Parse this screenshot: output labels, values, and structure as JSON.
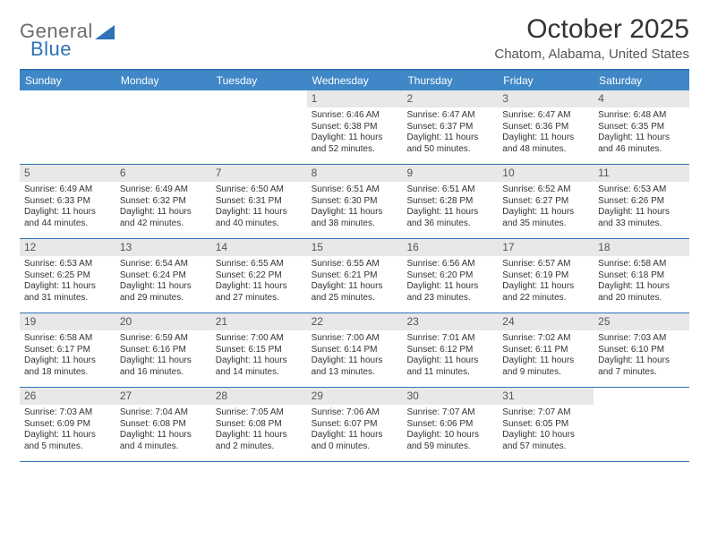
{
  "logo": {
    "text_general": "General",
    "text_blue": "Blue",
    "shape_color": "#2f72b8",
    "gray_color": "#6c6c6c"
  },
  "title": "October 2025",
  "location": "Chatom, Alabama, United States",
  "header_bg": "#3f87c6",
  "accent": "#2f72b8",
  "daynum_bg": "#e8e8e8",
  "text_color": "#333333",
  "day_headers": [
    "Sunday",
    "Monday",
    "Tuesday",
    "Wednesday",
    "Thursday",
    "Friday",
    "Saturday"
  ],
  "weeks": [
    [
      null,
      null,
      null,
      {
        "n": "1",
        "sr": "Sunrise: 6:46 AM",
        "ss": "Sunset: 6:38 PM",
        "dl": "Daylight: 11 hours and 52 minutes."
      },
      {
        "n": "2",
        "sr": "Sunrise: 6:47 AM",
        "ss": "Sunset: 6:37 PM",
        "dl": "Daylight: 11 hours and 50 minutes."
      },
      {
        "n": "3",
        "sr": "Sunrise: 6:47 AM",
        "ss": "Sunset: 6:36 PM",
        "dl": "Daylight: 11 hours and 48 minutes."
      },
      {
        "n": "4",
        "sr": "Sunrise: 6:48 AM",
        "ss": "Sunset: 6:35 PM",
        "dl": "Daylight: 11 hours and 46 minutes."
      }
    ],
    [
      {
        "n": "5",
        "sr": "Sunrise: 6:49 AM",
        "ss": "Sunset: 6:33 PM",
        "dl": "Daylight: 11 hours and 44 minutes."
      },
      {
        "n": "6",
        "sr": "Sunrise: 6:49 AM",
        "ss": "Sunset: 6:32 PM",
        "dl": "Daylight: 11 hours and 42 minutes."
      },
      {
        "n": "7",
        "sr": "Sunrise: 6:50 AM",
        "ss": "Sunset: 6:31 PM",
        "dl": "Daylight: 11 hours and 40 minutes."
      },
      {
        "n": "8",
        "sr": "Sunrise: 6:51 AM",
        "ss": "Sunset: 6:30 PM",
        "dl": "Daylight: 11 hours and 38 minutes."
      },
      {
        "n": "9",
        "sr": "Sunrise: 6:51 AM",
        "ss": "Sunset: 6:28 PM",
        "dl": "Daylight: 11 hours and 36 minutes."
      },
      {
        "n": "10",
        "sr": "Sunrise: 6:52 AM",
        "ss": "Sunset: 6:27 PM",
        "dl": "Daylight: 11 hours and 35 minutes."
      },
      {
        "n": "11",
        "sr": "Sunrise: 6:53 AM",
        "ss": "Sunset: 6:26 PM",
        "dl": "Daylight: 11 hours and 33 minutes."
      }
    ],
    [
      {
        "n": "12",
        "sr": "Sunrise: 6:53 AM",
        "ss": "Sunset: 6:25 PM",
        "dl": "Daylight: 11 hours and 31 minutes."
      },
      {
        "n": "13",
        "sr": "Sunrise: 6:54 AM",
        "ss": "Sunset: 6:24 PM",
        "dl": "Daylight: 11 hours and 29 minutes."
      },
      {
        "n": "14",
        "sr": "Sunrise: 6:55 AM",
        "ss": "Sunset: 6:22 PM",
        "dl": "Daylight: 11 hours and 27 minutes."
      },
      {
        "n": "15",
        "sr": "Sunrise: 6:55 AM",
        "ss": "Sunset: 6:21 PM",
        "dl": "Daylight: 11 hours and 25 minutes."
      },
      {
        "n": "16",
        "sr": "Sunrise: 6:56 AM",
        "ss": "Sunset: 6:20 PM",
        "dl": "Daylight: 11 hours and 23 minutes."
      },
      {
        "n": "17",
        "sr": "Sunrise: 6:57 AM",
        "ss": "Sunset: 6:19 PM",
        "dl": "Daylight: 11 hours and 22 minutes."
      },
      {
        "n": "18",
        "sr": "Sunrise: 6:58 AM",
        "ss": "Sunset: 6:18 PM",
        "dl": "Daylight: 11 hours and 20 minutes."
      }
    ],
    [
      {
        "n": "19",
        "sr": "Sunrise: 6:58 AM",
        "ss": "Sunset: 6:17 PM",
        "dl": "Daylight: 11 hours and 18 minutes."
      },
      {
        "n": "20",
        "sr": "Sunrise: 6:59 AM",
        "ss": "Sunset: 6:16 PM",
        "dl": "Daylight: 11 hours and 16 minutes."
      },
      {
        "n": "21",
        "sr": "Sunrise: 7:00 AM",
        "ss": "Sunset: 6:15 PM",
        "dl": "Daylight: 11 hours and 14 minutes."
      },
      {
        "n": "22",
        "sr": "Sunrise: 7:00 AM",
        "ss": "Sunset: 6:14 PM",
        "dl": "Daylight: 11 hours and 13 minutes."
      },
      {
        "n": "23",
        "sr": "Sunrise: 7:01 AM",
        "ss": "Sunset: 6:12 PM",
        "dl": "Daylight: 11 hours and 11 minutes."
      },
      {
        "n": "24",
        "sr": "Sunrise: 7:02 AM",
        "ss": "Sunset: 6:11 PM",
        "dl": "Daylight: 11 hours and 9 minutes."
      },
      {
        "n": "25",
        "sr": "Sunrise: 7:03 AM",
        "ss": "Sunset: 6:10 PM",
        "dl": "Daylight: 11 hours and 7 minutes."
      }
    ],
    [
      {
        "n": "26",
        "sr": "Sunrise: 7:03 AM",
        "ss": "Sunset: 6:09 PM",
        "dl": "Daylight: 11 hours and 5 minutes."
      },
      {
        "n": "27",
        "sr": "Sunrise: 7:04 AM",
        "ss": "Sunset: 6:08 PM",
        "dl": "Daylight: 11 hours and 4 minutes."
      },
      {
        "n": "28",
        "sr": "Sunrise: 7:05 AM",
        "ss": "Sunset: 6:08 PM",
        "dl": "Daylight: 11 hours and 2 minutes."
      },
      {
        "n": "29",
        "sr": "Sunrise: 7:06 AM",
        "ss": "Sunset: 6:07 PM",
        "dl": "Daylight: 11 hours and 0 minutes."
      },
      {
        "n": "30",
        "sr": "Sunrise: 7:07 AM",
        "ss": "Sunset: 6:06 PM",
        "dl": "Daylight: 10 hours and 59 minutes."
      },
      {
        "n": "31",
        "sr": "Sunrise: 7:07 AM",
        "ss": "Sunset: 6:05 PM",
        "dl": "Daylight: 10 hours and 57 minutes."
      },
      null
    ]
  ]
}
